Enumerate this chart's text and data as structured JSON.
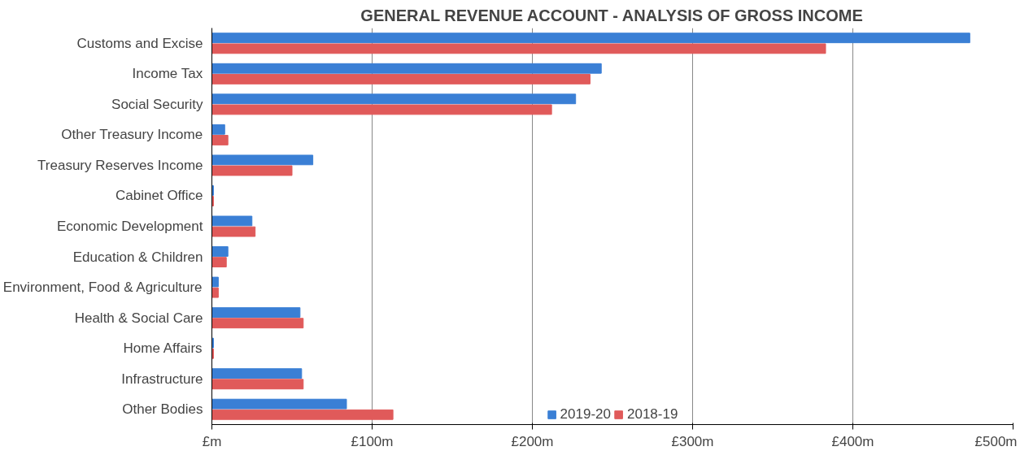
{
  "chart_data": {
    "type": "bar",
    "orientation": "horizontal",
    "title": "GENERAL REVENUE ACCOUNT - ANALYSIS OF GROSS INCOME",
    "categories": [
      "Customs and Excise",
      "Income Tax",
      "Social Security",
      "Other Treasury Income",
      "Treasury Reserves Income",
      "Cabinet Office",
      "Economic Development",
      "Education & Children",
      "Environment, Food & Agriculture",
      "Health & Social Care",
      "Home Affairs",
      "Infrastructure",
      "Other Bodies"
    ],
    "series": [
      {
        "name": "2019-20",
        "color": "#3a7fd5",
        "values": [
          473,
          243,
          227,
          8,
          63,
          1,
          25,
          10,
          4,
          55,
          1,
          56,
          84
        ]
      },
      {
        "name": "2018-19",
        "color": "#e05a5a",
        "values": [
          383,
          236,
          212,
          10,
          50,
          1,
          27,
          9,
          4,
          57,
          1,
          57,
          113
        ]
      }
    ],
    "xlim": [
      0,
      500
    ],
    "xticks": [
      {
        "value": 0,
        "label": "£m"
      },
      {
        "value": 100,
        "label": "£100m"
      },
      {
        "value": 200,
        "label": "£200m"
      },
      {
        "value": 300,
        "label": "£300m"
      },
      {
        "value": 400,
        "label": "£400m"
      },
      {
        "value": 500,
        "label": "£500m"
      }
    ],
    "grid": "x",
    "legend": "bottom"
  }
}
